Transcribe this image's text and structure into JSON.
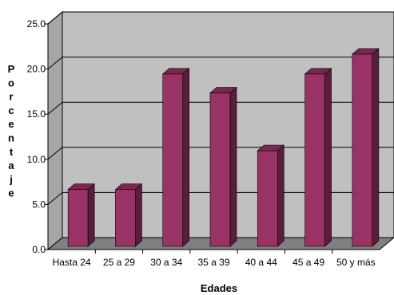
{
  "chart_data": {
    "type": "bar",
    "categories": [
      "Hasta 24",
      "25 a 29",
      "30 a 34",
      "35 a 39",
      "40 a 44",
      "45 a 49",
      "50 y más"
    ],
    "values": [
      6.3,
      6.3,
      19.1,
      17.0,
      10.6,
      19.1,
      21.3
    ],
    "xlabel": "Edades",
    "ylabel": "Porcentaje",
    "ylim": [
      0,
      25
    ],
    "yticks": [
      "0.0",
      "5.0",
      "10.0",
      "15.0",
      "20.0",
      "25.0"
    ],
    "grid": true,
    "style": "3d-columns",
    "colors": {
      "bar_front": "#993366",
      "bar_side": "#5a1d3c",
      "bar_top": "#7a2852",
      "wall": "#c0c0c0",
      "side_wall": "#a6a6a6",
      "floor": "#808080",
      "gridline": "#000000"
    }
  }
}
